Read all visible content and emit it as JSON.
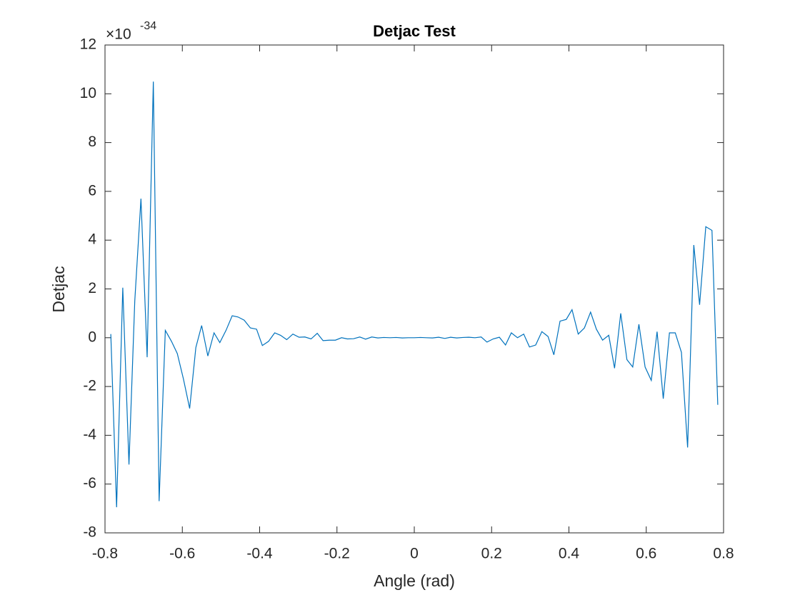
{
  "chart_data": {
    "type": "line",
    "title": "Detjac Test",
    "xlabel": "Angle (rad)",
    "ylabel": "Detjac",
    "y_multiplier": {
      "base": "×10",
      "exponent": "-34"
    },
    "x": [
      -0.785,
      -0.77,
      -0.754,
      -0.738,
      -0.723,
      -0.707,
      -0.691,
      -0.675,
      -0.66,
      -0.644,
      -0.628,
      -0.613,
      -0.597,
      -0.581,
      -0.565,
      -0.55,
      -0.534,
      -0.518,
      -0.503,
      -0.487,
      -0.471,
      -0.456,
      -0.44,
      -0.424,
      -0.408,
      -0.393,
      -0.377,
      -0.361,
      -0.346,
      -0.33,
      -0.314,
      -0.298,
      -0.283,
      -0.267,
      -0.251,
      -0.236,
      -0.22,
      -0.204,
      -0.188,
      -0.173,
      -0.157,
      -0.141,
      -0.126,
      -0.11,
      -0.094,
      -0.079,
      -0.063,
      -0.047,
      -0.031,
      -0.016,
      0,
      0.016,
      0.031,
      0.047,
      0.063,
      0.079,
      0.094,
      0.11,
      0.126,
      0.141,
      0.157,
      0.173,
      0.188,
      0.204,
      0.22,
      0.236,
      0.251,
      0.267,
      0.283,
      0.298,
      0.314,
      0.33,
      0.346,
      0.361,
      0.377,
      0.393,
      0.408,
      0.424,
      0.44,
      0.456,
      0.471,
      0.487,
      0.503,
      0.518,
      0.534,
      0.55,
      0.565,
      0.581,
      0.597,
      0.613,
      0.628,
      0.644,
      0.66,
      0.675,
      0.691,
      0.707,
      0.723,
      0.738,
      0.754,
      0.77,
      0.785
    ],
    "series": [
      {
        "color": "#0072bd",
        "values": [
          0.15,
          -6.95,
          2.05,
          -5.2,
          1.5,
          5.7,
          -0.8,
          10.5,
          -6.7,
          0.3,
          -0.15,
          -0.65,
          -1.7,
          -2.9,
          -0.4,
          0.5,
          -0.75,
          0.2,
          -0.2,
          0.3,
          0.9,
          0.85,
          0.72,
          0.4,
          0.35,
          -0.32,
          -0.15,
          0.2,
          0.1,
          -0.08,
          0.15,
          0.02,
          0.03,
          -0.05,
          0.18,
          -0.12,
          -0.1,
          -0.1,
          0.0,
          -0.05,
          -0.04,
          0.03,
          -0.06,
          0.03,
          -0.01,
          0.01,
          0.0,
          0.01,
          -0.01,
          0.0,
          0.0,
          0.01,
          0.0,
          -0.01,
          0.02,
          -0.03,
          0.02,
          -0.01,
          0.01,
          0.02,
          0.0,
          0.03,
          -0.18,
          -0.05,
          0.02,
          -0.3,
          0.2,
          0.0,
          0.15,
          -0.38,
          -0.3,
          0.25,
          0.05,
          -0.7,
          0.68,
          0.75,
          1.15,
          0.15,
          0.4,
          1.05,
          0.35,
          -0.1,
          0.1,
          -1.25,
          1.0,
          -0.9,
          -1.2,
          0.55,
          -1.2,
          -1.75,
          0.25,
          -2.5,
          0.2,
          0.2,
          -0.6,
          -4.5,
          3.8,
          1.35,
          4.55,
          4.4,
          -2.75
        ]
      }
    ],
    "xlim": [
      -0.8,
      0.8
    ],
    "xticks": [
      -0.8,
      -0.6,
      -0.4,
      -0.2,
      0,
      0.2,
      0.4,
      0.6,
      0.8
    ],
    "ylim": [
      -8,
      12
    ],
    "yticks": [
      -8,
      -6,
      -4,
      -2,
      0,
      2,
      4,
      6,
      8,
      10,
      12
    ]
  }
}
